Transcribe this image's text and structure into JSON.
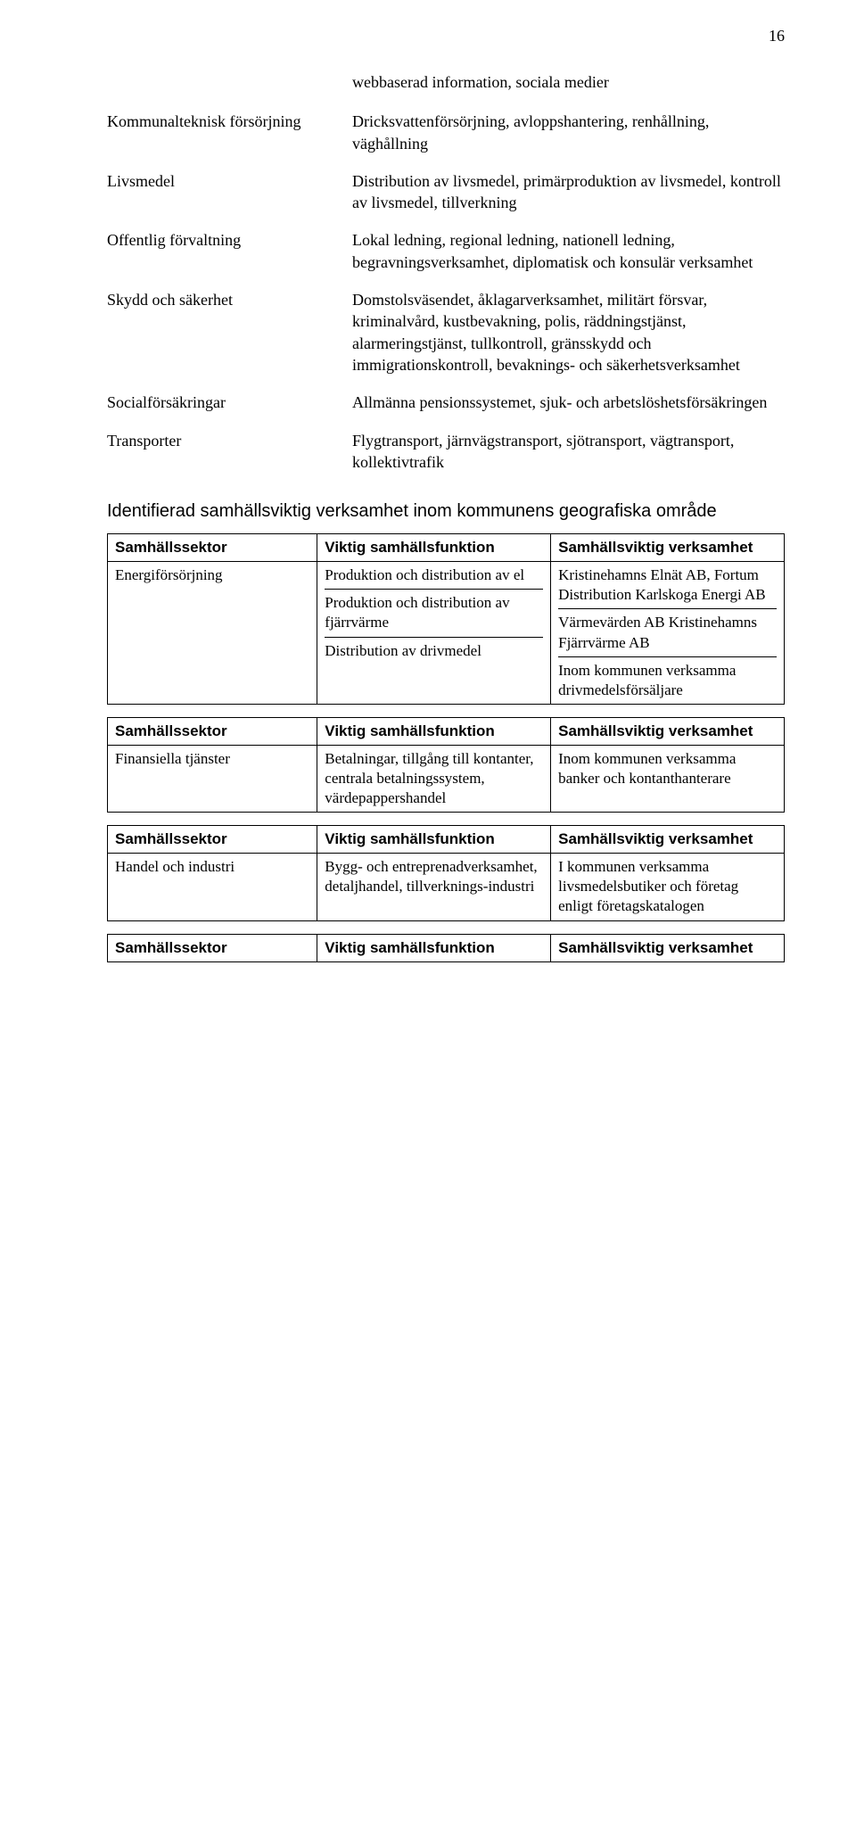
{
  "page_number": "16",
  "intro_text": "webbaserad information, sociala medier",
  "definitions": [
    {
      "term": "Kommunalteknisk försörjning",
      "desc": "Dricksvattenförsörjning, avloppshantering, renhållning, väghållning"
    },
    {
      "term": "Livsmedel",
      "desc": "Distribution av livsmedel, primärproduktion av livsmedel, kontroll av livsmedel, tillverkning"
    },
    {
      "term": "Offentlig förvaltning",
      "desc": "Lokal ledning, regional ledning, nationell ledning, begravningsverksamhet, diplomatisk och konsulär verksamhet"
    },
    {
      "term": "Skydd och säkerhet",
      "desc": "Domstolsväsendet, åklagarverksamhet, militärt försvar, kriminalvård, kustbevakning, polis, räddningstjänst, alarmeringstjänst, tullkontroll, gränsskydd och immigrationskontroll, bevaknings- och säkerhetsverksamhet"
    },
    {
      "term": "Socialförsäkringar",
      "desc": "Allmänna pensionssystemet, sjuk- och arbetslöshetsförsäkringen"
    },
    {
      "term": "Transporter",
      "desc": "Flygtransport, järnvägstransport, sjötransport, vägtransport, kollektivtrafik"
    }
  ],
  "section_heading": "Identifierad samhällsviktig verksamhet inom kommunens geografiska område",
  "header_labels": {
    "sector": "Samhällssektor",
    "function": "Viktig samhällsfunktion",
    "activity": "Samhällsviktig verksamhet"
  },
  "tables": [
    {
      "sector": "Energiförsörjning",
      "rows": [
        {
          "function": "Produktion och distribution av el",
          "activity": "Kristinehamns Elnät AB, Fortum Distribution Karlskoga Energi AB"
        },
        {
          "function": "Produktion och distribution av fjärrvärme",
          "activity": "Värmevärden AB Kristinehamns Fjärrvärme AB"
        },
        {
          "function": "Distribution av drivmedel",
          "activity": "Inom kommunen verksamma drivmedelsförsäljare"
        }
      ]
    },
    {
      "sector": "Finansiella tjänster",
      "rows": [
        {
          "function": "Betalningar, tillgång till kontanter, centrala betalningssystem, värdepappershandel",
          "activity": "Inom kommunen verksamma banker och kontanthanterare"
        }
      ]
    },
    {
      "sector": "Handel och industri",
      "rows": [
        {
          "function": "Bygg- och entreprenadverksamhet, detaljhandel, tillverknings-industri",
          "activity": "I kommunen verksamma livsmedelsbutiker och företag enligt företagskatalogen"
        }
      ]
    }
  ],
  "trailing_partial": true
}
